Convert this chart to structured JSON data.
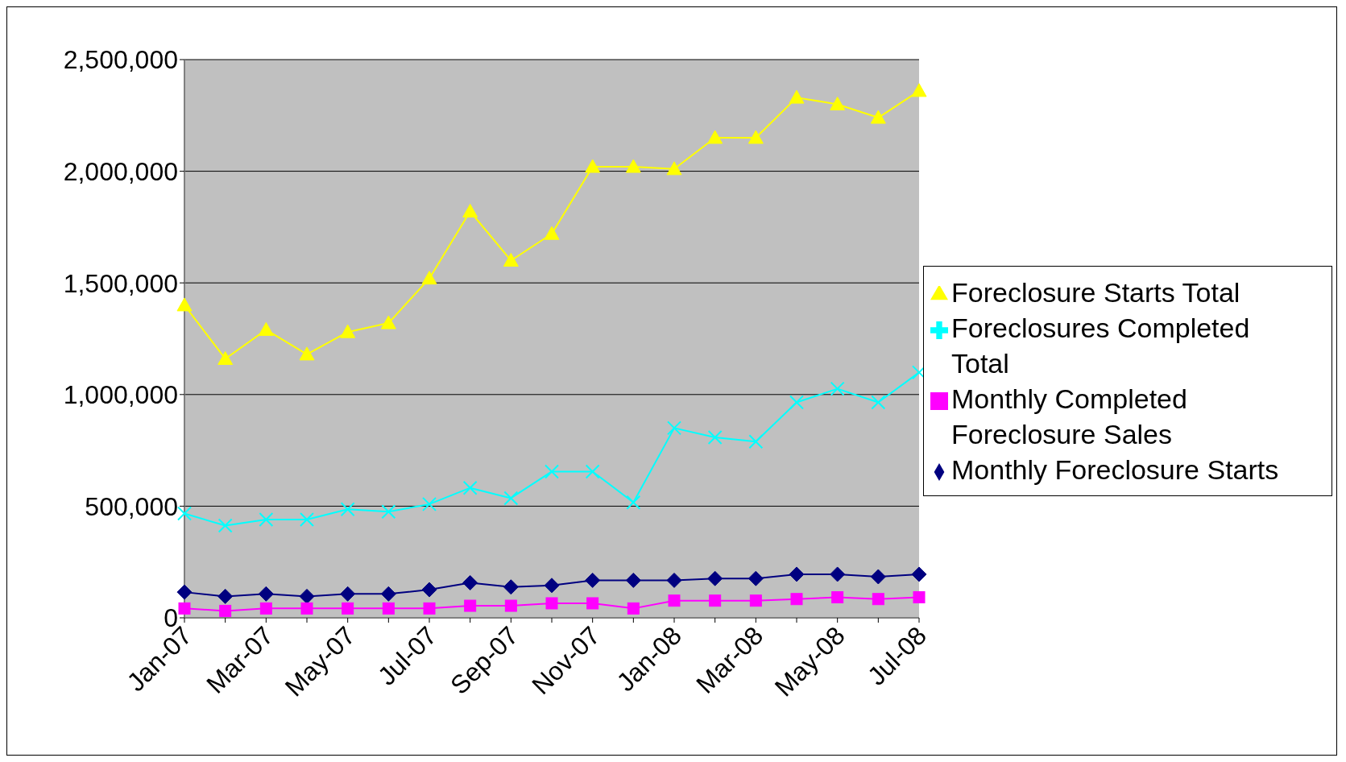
{
  "chart_data": {
    "type": "line",
    "categories": [
      "Jan-07",
      null,
      "Mar-07",
      null,
      "May-07",
      null,
      "Jul-07",
      null,
      "Sep-07",
      null,
      "Nov-07",
      null,
      "Jan-08",
      null,
      "Mar-08",
      null,
      "May-08",
      null,
      "Jul-08"
    ],
    "series": [
      {
        "name": "Monthly Foreclosure Starts",
        "color": "#000080",
        "marker": "diamond",
        "values": [
          115000,
          96000,
          107000,
          96000,
          107000,
          107000,
          126000,
          157000,
          138000,
          145000,
          168000,
          168000,
          168000,
          176000,
          176000,
          195000,
          195000,
          184000,
          195000
        ]
      },
      {
        "name": "Monthly Completed Foreclosure Sales",
        "color": "#ff00ff",
        "marker": "square",
        "values": [
          42000,
          31000,
          42000,
          42000,
          42000,
          42000,
          42000,
          54000,
          54000,
          65000,
          65000,
          42000,
          77000,
          77000,
          77000,
          84000,
          92000,
          84000,
          92000
        ]
      },
      {
        "name": "Foreclosure Starts Total",
        "color": "#ffff00",
        "marker": "triangle",
        "values": [
          1400000,
          1160000,
          1290000,
          1180000,
          1280000,
          1320000,
          1520000,
          1820000,
          1600000,
          1720000,
          2020000,
          2020000,
          2010000,
          2150000,
          2150000,
          2330000,
          2300000,
          2240000,
          2360000
        ]
      },
      {
        "name": "Foreclosures Completed Total",
        "color": "#00ffff",
        "marker": "cross",
        "values": [
          467000,
          413000,
          440000,
          440000,
          486000,
          475000,
          509000,
          582000,
          536000,
          655000,
          655000,
          517000,
          850000,
          808000,
          789000,
          965000,
          1026000,
          965000,
          1099000
        ]
      }
    ],
    "ylim": [
      0,
      2500000
    ],
    "yticks": [
      {
        "value": 0,
        "label": "0"
      },
      {
        "value": 500000,
        "label": "500,000"
      },
      {
        "value": 1000000,
        "label": "1,000,000"
      },
      {
        "value": 1500000,
        "label": "1,500,000"
      },
      {
        "value": 2000000,
        "label": "2,000,000"
      },
      {
        "value": 2500000,
        "label": "2,500,000"
      }
    ],
    "grid": "y",
    "legend": "right"
  }
}
